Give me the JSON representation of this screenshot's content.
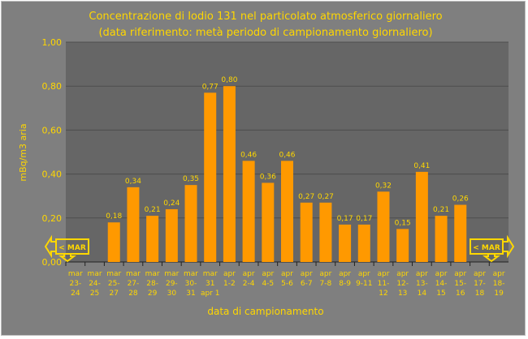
{
  "chart_data": {
    "type": "bar",
    "title": "Concentrazione di Iodio 131 nel particolato atmosferico giornaliero",
    "subtitle": "(data riferimento: metà periodo di campionamento giornaliero)",
    "xlabel": "data di campionamento",
    "ylabel": "mBq/m3 aria",
    "ylim": [
      0,
      1.0
    ],
    "yticks": [
      "0,00",
      "0,20",
      "0,40",
      "0,60",
      "0,80",
      "1,00"
    ],
    "categories": [
      [
        "mar",
        "23-",
        "24"
      ],
      [
        "mar",
        "24-",
        "25"
      ],
      [
        "mar",
        "25-",
        "27"
      ],
      [
        "mar",
        "27-",
        "28"
      ],
      [
        "mar",
        "28-",
        "29"
      ],
      [
        "mar",
        "29-",
        "30"
      ],
      [
        "mar",
        "30-",
        "31"
      ],
      [
        "mar",
        "31",
        "apr 1"
      ],
      [
        "apr",
        "1-2",
        ""
      ],
      [
        "apr",
        "2-4",
        ""
      ],
      [
        "apr",
        "4-5",
        ""
      ],
      [
        "apr",
        "5-6",
        ""
      ],
      [
        "apr",
        "6-7",
        ""
      ],
      [
        "apr",
        "7-8",
        ""
      ],
      [
        "apr",
        "8-9",
        ""
      ],
      [
        "apr",
        "9-11",
        ""
      ],
      [
        "apr",
        "11-",
        "12"
      ],
      [
        "apr",
        "12-",
        "13"
      ],
      [
        "apr",
        "13-",
        "14"
      ],
      [
        "apr",
        "14-",
        "15"
      ],
      [
        "apr",
        "15-",
        "16"
      ],
      [
        "apr",
        "17-",
        "18"
      ],
      [
        "apr",
        "18-",
        "19"
      ]
    ],
    "values": [
      null,
      null,
      0.18,
      0.34,
      0.21,
      0.24,
      0.35,
      0.77,
      0.8,
      0.46,
      0.36,
      0.46,
      0.27,
      0.27,
      0.17,
      0.17,
      0.32,
      0.15,
      0.41,
      0.21,
      0.26,
      null,
      null
    ],
    "data_labels": [
      null,
      null,
      "0,18",
      "0,34",
      "0,21",
      "0,24",
      "0,35",
      "0,77",
      "0,80",
      "0,46",
      "0,36",
      "0,46",
      "0,27",
      "0,27",
      "0,17",
      "0,17",
      "0,32",
      "0,15",
      "0,41",
      "0,21",
      "0,26",
      null,
      null
    ],
    "grid": true,
    "legend": "none",
    "annotations": [
      {
        "text": "< MAR",
        "side": "left"
      },
      {
        "text": "< MAR",
        "side": "right"
      }
    ],
    "colors": {
      "bar": "#ff9900",
      "text": "#ffd700",
      "background": "#7f7f7f",
      "plot": "#666666",
      "grid": "#4d4d4d"
    }
  }
}
